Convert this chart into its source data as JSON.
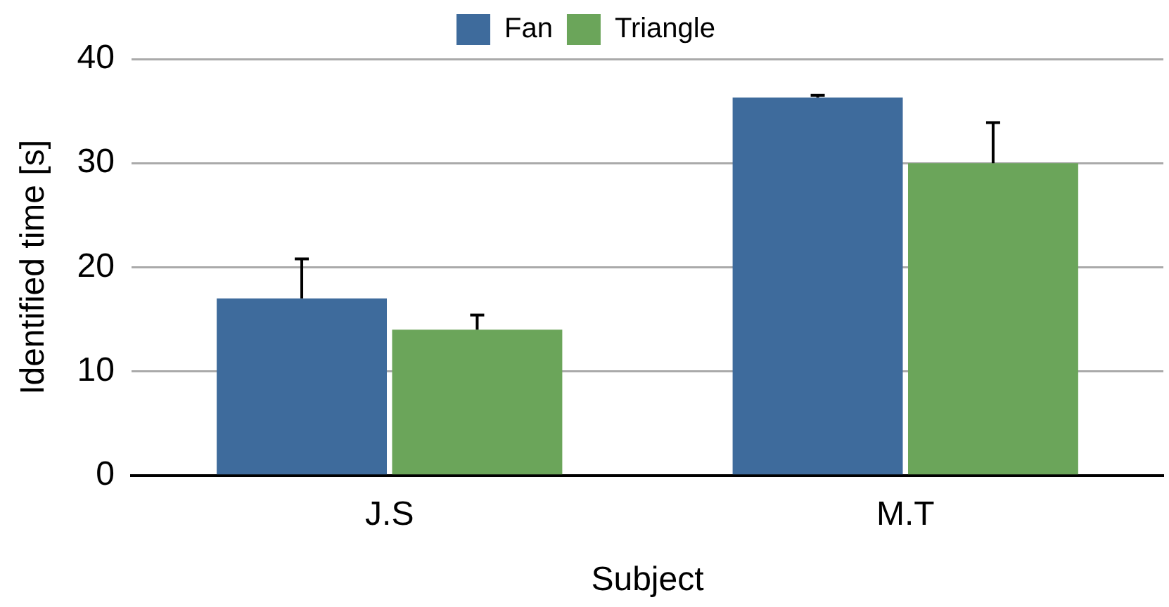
{
  "chart_data": {
    "type": "bar",
    "xlabel": "Subject",
    "ylabel": "Identified time [s]",
    "categories": [
      "J.S",
      "M.T"
    ],
    "series": [
      {
        "name": "Fan",
        "color": "#3e6b9c",
        "values": [
          17,
          36.3
        ],
        "errors": [
          [
            17,
            20.8
          ],
          [
            36.3,
            36.5
          ]
        ]
      },
      {
        "name": "Triangle",
        "color": "#6ba55a",
        "values": [
          14,
          30
        ],
        "errors": [
          [
            14,
            15.4
          ],
          [
            30,
            33.9
          ]
        ]
      }
    ],
    "ylim": [
      0,
      40
    ],
    "yticks": [
      0,
      10,
      20,
      30,
      40
    ],
    "grid": "y",
    "legend": "top"
  }
}
